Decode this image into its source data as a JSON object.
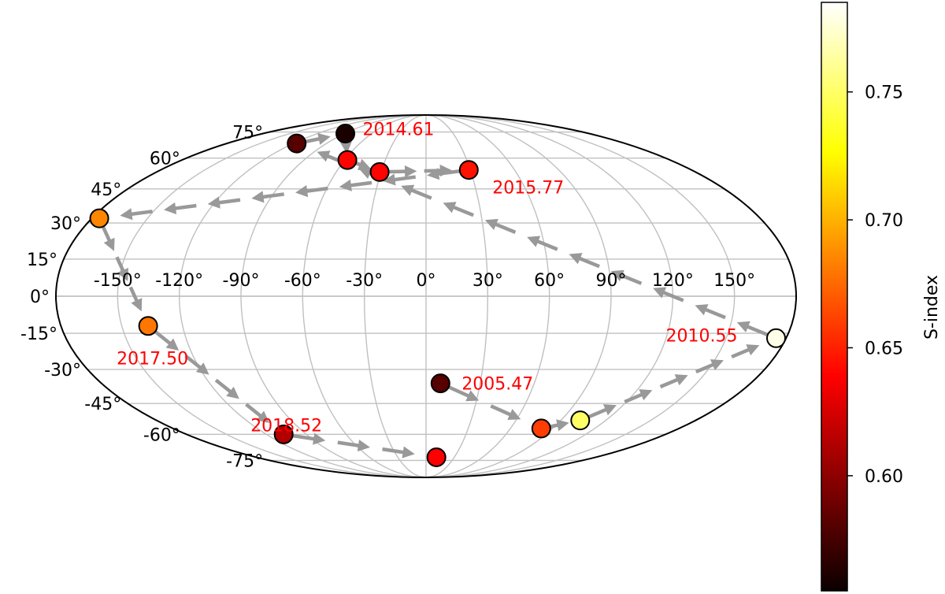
{
  "chart_data": {
    "type": "scatter",
    "projection": "mollweide",
    "title": "",
    "xlabel": "",
    "ylabel": "",
    "longitude_ticks": [
      "-150°",
      "-120°",
      "-90°",
      "-60°",
      "-30°",
      "0°",
      "30°",
      "60°",
      "90°",
      "120°",
      "150°"
    ],
    "latitude_ticks": [
      "75°",
      "60°",
      "45°",
      "30°",
      "15°",
      "0°",
      "-15°",
      "-30°",
      "-45°",
      "-60°",
      "-75°"
    ],
    "grid": true,
    "colormap": "hot",
    "colorbar": {
      "label": "S-index",
      "range": [
        0.555,
        0.785
      ],
      "ticks": [
        "0.60",
        "0.65",
        "0.70",
        "0.75"
      ],
      "tick_values": [
        0.6,
        0.65,
        0.7,
        0.75
      ],
      "placement": "right"
    },
    "points": [
      {
        "lon": 8,
        "lat": -36,
        "s": 0.58
      },
      {
        "lon": 82,
        "lat": -57,
        "s": 0.66
      },
      {
        "lon": 103,
        "lat": -53,
        "s": 0.75
      },
      {
        "lon": 175,
        "lat": -17,
        "s": 0.78
      },
      {
        "lon": -117,
        "lat": 68,
        "s": 0.58
      },
      {
        "lon": -89,
        "lat": 74,
        "s": 0.56
      },
      {
        "lon": -58,
        "lat": 59,
        "s": 0.64
      },
      {
        "lon": -31,
        "lat": 53,
        "s": 0.64
      },
      {
        "lon": 29,
        "lat": 54,
        "s": 0.645
      },
      {
        "lon": -176,
        "lat": 32,
        "s": 0.685
      },
      {
        "lon": -137,
        "lat": -12,
        "s": 0.68
      },
      {
        "lon": -107,
        "lat": -60,
        "s": 0.61
      },
      {
        "lon": 11,
        "lat": -73,
        "s": 0.635
      }
    ],
    "annotations": [
      {
        "text": "2005.47",
        "point": 0
      },
      {
        "text": "2010.55",
        "point": 3
      },
      {
        "text": "2014.61",
        "point": 5
      },
      {
        "text": "2015.77",
        "point": 8
      },
      {
        "text": "2017.50",
        "point": 10
      },
      {
        "text": "2018.52",
        "point": 11
      }
    ],
    "path_color": "#999999",
    "label_color": "#ff0000"
  }
}
